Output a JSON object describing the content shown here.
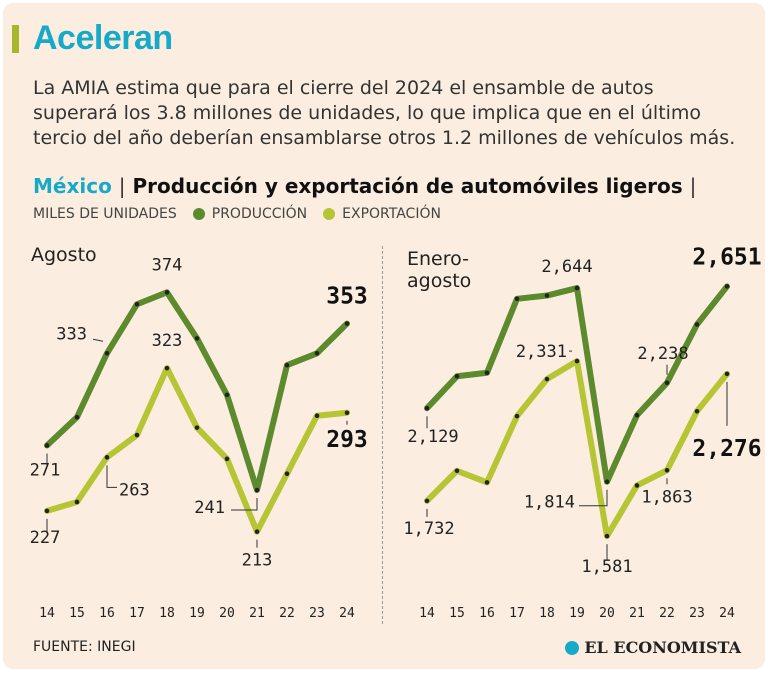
{
  "header": {
    "title": "Aceleran",
    "description": "La AMIA estima que para el cierre del 2024 el ensamble de autos superará los 3.8 millones de unidades, lo que implica que en el último tercio del año deberían ensamblarse otros 1.2 millones de vehículos más.",
    "country": "México",
    "separator": "|",
    "subtitle": "Producción y exportación de automóviles ligeros",
    "trailing_separator": "|",
    "units": "MILES DE UNIDADES"
  },
  "legend": {
    "production": "PRODUCCIÓN",
    "exports": "EXPORTACIÓN"
  },
  "colors": {
    "production": "#5c8a2c",
    "exports": "#b7c433",
    "title": "#17a9c8",
    "background": "#fbeee0"
  },
  "footer": {
    "source": "FUENTE: INEGI",
    "logo": "EL ECONOMISTA"
  },
  "chart_data": [
    {
      "type": "line",
      "title": "Agosto",
      "x": [
        "14",
        "15",
        "16",
        "17",
        "18",
        "19",
        "20",
        "21",
        "22",
        "23",
        "24"
      ],
      "ylim": [
        200,
        385
      ],
      "series": [
        {
          "name": "PRODUCCIÓN",
          "values": [
            271,
            290,
            333,
            366,
            374,
            343,
            305,
            241,
            325,
            333,
            353
          ]
        },
        {
          "name": "EXPORTACIÓN",
          "values": [
            227,
            233,
            263,
            278,
            323,
            283,
            262,
            213,
            252,
            291,
            293
          ]
        }
      ],
      "labels": [
        {
          "text": "271",
          "series": 0,
          "index": 0
        },
        {
          "text": "333",
          "series": 0,
          "index": 2
        },
        {
          "text": "374",
          "series": 0,
          "index": 4
        },
        {
          "text": "241",
          "series": 0,
          "index": 7
        },
        {
          "text": "353",
          "series": 0,
          "index": 10,
          "emphasis": true
        },
        {
          "text": "227",
          "series": 1,
          "index": 0
        },
        {
          "text": "263",
          "series": 1,
          "index": 2
        },
        {
          "text": "323",
          "series": 1,
          "index": 4
        },
        {
          "text": "213",
          "series": 1,
          "index": 7
        },
        {
          "text": "293",
          "series": 1,
          "index": 10,
          "emphasis": true
        }
      ]
    },
    {
      "type": "line",
      "title": "Enero-agosto",
      "title_lines": [
        "Enero-",
        "agosto"
      ],
      "x": [
        "14",
        "15",
        "16",
        "17",
        "18",
        "19",
        "20",
        "21",
        "22",
        "23",
        "24"
      ],
      "ylim": [
        1500,
        2700
      ],
      "series": [
        {
          "name": "PRODUCCIÓN",
          "values": [
            2129,
            2266,
            2281,
            2598,
            2612,
            2644,
            1814,
            2099,
            2238,
            2488,
            2651
          ]
        },
        {
          "name": "EXPORTACIÓN",
          "values": [
            1732,
            1861,
            1811,
            2095,
            2254,
            2331,
            1581,
            1798,
            1863,
            2116,
            2276
          ]
        }
      ],
      "labels": [
        {
          "text": "2,129",
          "series": 0,
          "index": 0
        },
        {
          "text": "2,644",
          "series": 0,
          "index": 5
        },
        {
          "text": "1,814",
          "series": 0,
          "index": 6
        },
        {
          "text": "2,238",
          "series": 0,
          "index": 8
        },
        {
          "text": "2,651",
          "series": 0,
          "index": 10,
          "emphasis": true
        },
        {
          "text": "1,732",
          "series": 1,
          "index": 0
        },
        {
          "text": "2,331",
          "series": 1,
          "index": 5
        },
        {
          "text": "1,581",
          "series": 1,
          "index": 6
        },
        {
          "text": "1,863",
          "series": 1,
          "index": 8
        },
        {
          "text": "2,276",
          "series": 1,
          "index": 10,
          "emphasis": true
        }
      ]
    }
  ]
}
